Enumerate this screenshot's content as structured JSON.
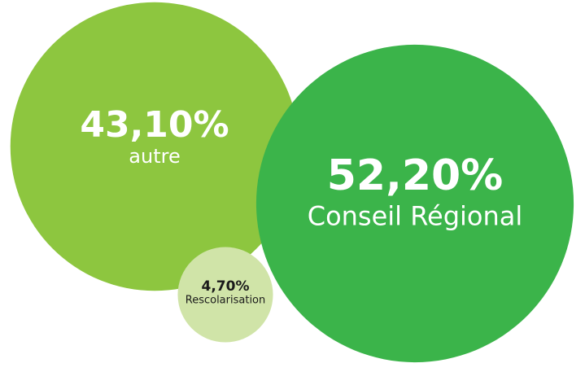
{
  "chart_data": {
    "type": "bubble",
    "categories": [
      "autre",
      "Conseil Régional",
      "Rescolarisation"
    ],
    "values": [
      43.1,
      52.2,
      4.7
    ],
    "value_labels": [
      "43,10%",
      "52,20%",
      "4,70%"
    ],
    "colors": [
      "#8dc63f",
      "#3bb44a",
      "#d0e4a8"
    ]
  }
}
